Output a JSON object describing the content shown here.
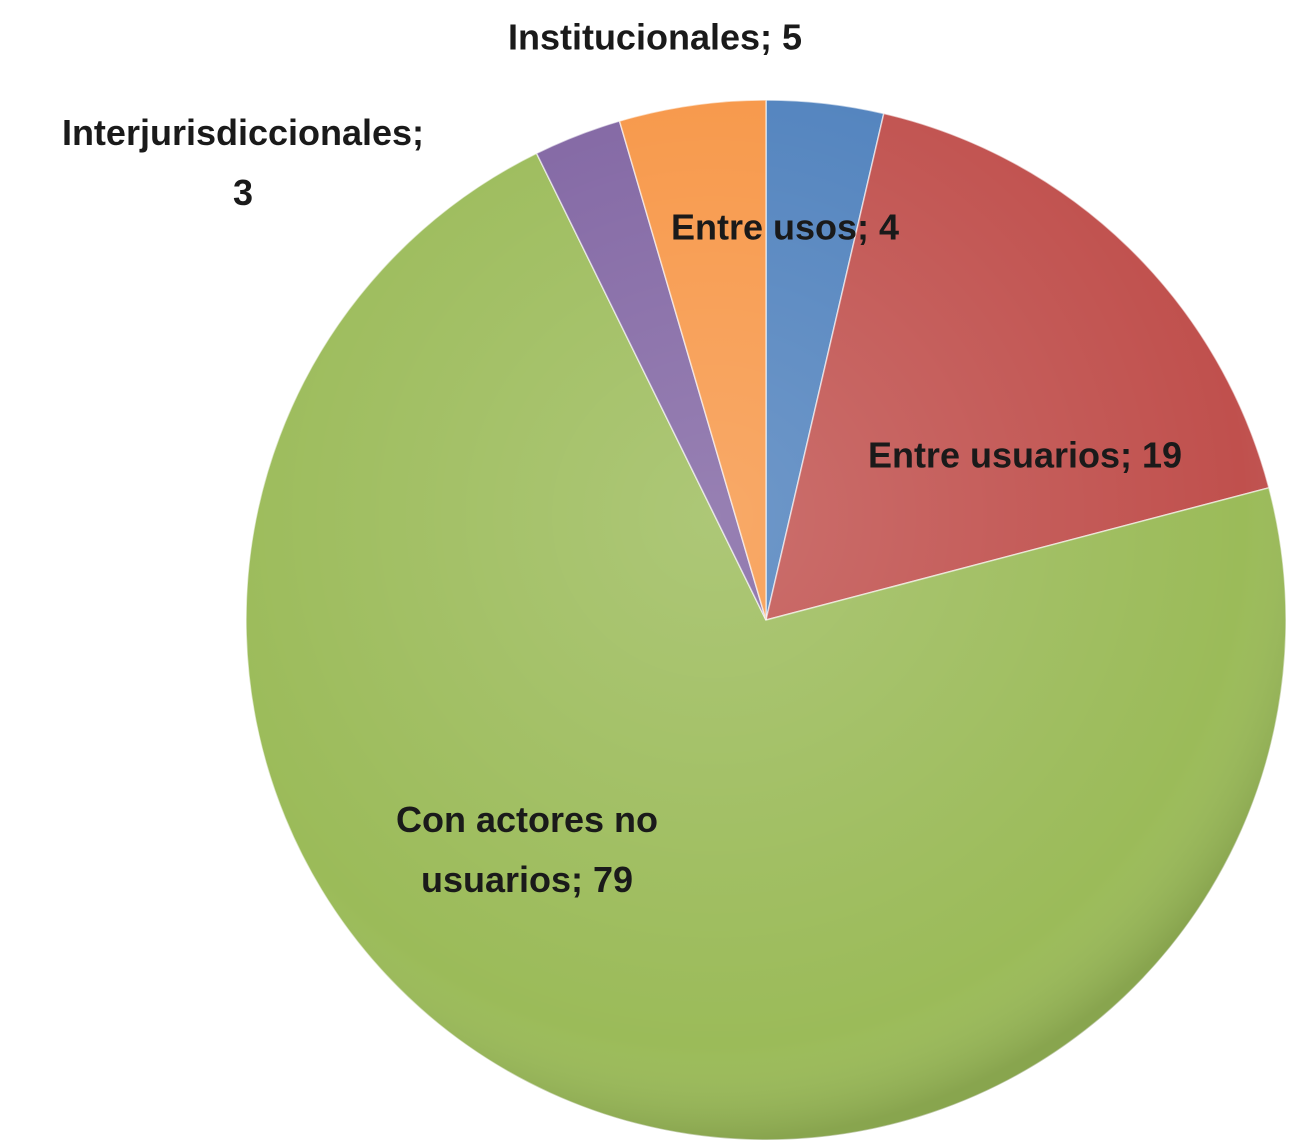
{
  "chart_data": {
    "type": "pie",
    "categories": [
      "Entre usos",
      "Entre usuarios",
      "Con actores no usuarios",
      "Interjurisdiccionales",
      "Institucionales"
    ],
    "values": [
      4,
      19,
      79,
      3,
      5
    ],
    "value_labels": [
      "Entre usos; 4",
      "Entre usuarios; 19",
      "Con actores no usuarios; 79",
      "Interjurisdiccionales; 3",
      "Institucionales; 5"
    ],
    "colors": [
      "#4f81bd",
      "#c0504d",
      "#9bbb59",
      "#8064a2",
      "#f79646"
    ]
  }
}
